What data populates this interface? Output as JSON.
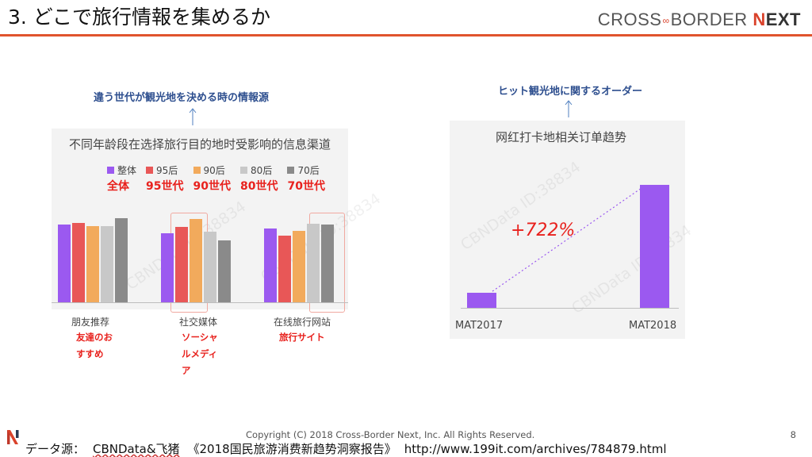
{
  "header": {
    "title": "3. どこで旅行情報を集めるか",
    "brand": {
      "part1": "CROSS",
      "part2": "BORDER",
      "next_n": "N",
      "next_rest": "EXT"
    }
  },
  "left": {
    "caption": "違う世代が観光地を決める時の情報源",
    "chart_data": {
      "type": "bar",
      "title": "不同年龄段在选择旅行目的地时受影响的信息渠道",
      "categories": [
        "朋友推荐",
        "社交媒体",
        "在线旅行网站"
      ],
      "category_labels_jp": [
        "友達のおすすめ",
        "ソーシャルメディア",
        "旅行サイト"
      ],
      "series": [
        {
          "name": "整体",
          "name_jp": "全体",
          "color": "#9b59f0",
          "values": [
            100,
            88,
            95
          ]
        },
        {
          "name": "95后",
          "name_jp": "95世代",
          "color": "#e85757",
          "values": [
            102,
            97,
            85
          ]
        },
        {
          "name": "90后",
          "name_jp": "90世代",
          "color": "#f2aa5c",
          "values": [
            98,
            107,
            92
          ]
        },
        {
          "name": "80后",
          "name_jp": "80世代",
          "color": "#c8c8c8",
          "values": [
            98,
            91,
            101
          ]
        },
        {
          "name": "70后",
          "name_jp": "70世代",
          "color": "#8a8a8a",
          "values": [
            108,
            79,
            100
          ]
        }
      ],
      "ylim": [
        0,
        120
      ],
      "highlighted": [
        "社交媒体",
        "在线旅行网站"
      ],
      "watermark": "CBNData ID:38834"
    }
  },
  "right": {
    "caption": "ヒット観光地に関するオーダー",
    "chart_data": {
      "type": "bar",
      "title": "网红打卡地相关订单趋势",
      "categories": [
        "MAT2017",
        "MAT2018"
      ],
      "values": [
        1,
        8.22
      ],
      "color": "#9b59f0",
      "annotation": "+722%",
      "watermark": "CBNData ID:38834"
    }
  },
  "footer": {
    "copyright": "Copyright (C) 2018 Cross-Border Next, Inc. All Rights Reserved.",
    "page": "8",
    "source_label": "データ源：",
    "source_name": "CBNData&飞猪",
    "report": "《2018国民旅游消费新趋势洞察报告》",
    "url": "http://www.199it.com/archives/784879.html"
  }
}
